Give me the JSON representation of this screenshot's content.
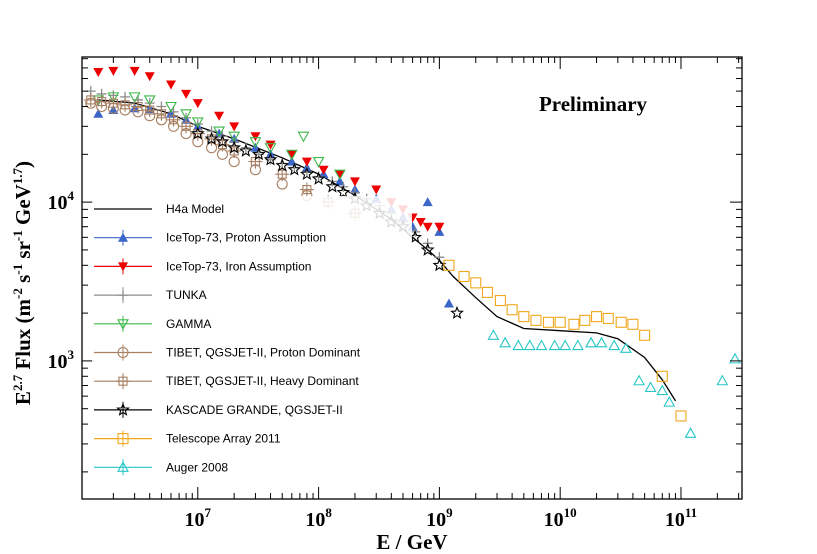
{
  "chart_data": {
    "type": "scatter",
    "title": "",
    "annotation": "Preliminary",
    "xlabel": "E / GeV",
    "ylabel": {
      "base": "E",
      "exp": "2.7",
      "rest": " Flux (m",
      "e1": "-2",
      "t1": " s",
      "e2": "-1",
      "t2": " sr",
      "e3": "-1",
      "t3": " GeV",
      "e4": "1.7",
      "t4": ")"
    },
    "x_scale": "log",
    "y_scale": "log",
    "xlim": [
      1100000.0,
      320000000000.0
    ],
    "ylim": [
      135,
      82000
    ],
    "x_ticks": [
      {
        "base": "10",
        "exp": "7"
      },
      {
        "base": "10",
        "exp": "8"
      },
      {
        "base": "10",
        "exp": "9"
      },
      {
        "base": "10",
        "exp": "10"
      },
      {
        "base": "10",
        "exp": "11"
      }
    ],
    "y_ticks": [
      {
        "base": "10",
        "exp": "3"
      },
      {
        "base": "10",
        "exp": "4"
      }
    ],
    "legend_position": "left",
    "series": [
      {
        "name": "H4a Model",
        "marker": "line",
        "color": "#000000",
        "x": [
          1500000.0,
          3000000.0,
          6000000.0,
          10000000.0,
          20000000.0,
          50000000.0,
          100000000.0,
          200000000.0,
          400000000.0,
          600000000.0,
          800000000.0,
          1000000000.0,
          1300000000.0,
          2000000000.0,
          3000000000.0,
          5000000000.0,
          10000000000.0,
          20000000000.0,
          30000000000.0,
          50000000000.0,
          70000000000.0,
          90000000000.0
        ],
        "y": [
          44000,
          42000,
          36000,
          30000,
          25000,
          19000,
          15000,
          11000,
          7800,
          6000,
          5000,
          4300,
          3400,
          2500,
          1900,
          1600,
          1550,
          1500,
          1380,
          1050,
          760,
          560
        ]
      },
      {
        "name": "IceTop-73, Proton Assumption",
        "marker": "triangle-up-filled",
        "color": "#3b66c9",
        "x": [
          1500000.0,
          2000000.0,
          3000000.0,
          4000000.0,
          6000000.0,
          8000000.0,
          10000000.0,
          15000000.0,
          20000000.0,
          30000000.0,
          40000000.0,
          60000000.0,
          80000000.0,
          110000000.0,
          150000000.0,
          200000000.0,
          300000000.0,
          400000000.0,
          500000000.0,
          600000000.0,
          800000000.0,
          1000000000.0,
          1200000000.0
        ],
        "y": [
          36000,
          38000,
          39000,
          38500,
          36000,
          33000,
          30000,
          27000,
          25000,
          22000,
          20000,
          18000,
          16500,
          15000,
          13500,
          12000,
          10500,
          9000,
          8000,
          7000,
          10000,
          6500,
          2300
        ]
      },
      {
        "name": "IceTop-73, Iron Assumption",
        "marker": "triangle-down-filled",
        "color": "#ee0000",
        "x": [
          1500000.0,
          2000000.0,
          3000000.0,
          4000000.0,
          6000000.0,
          8000000.0,
          10000000.0,
          15000000.0,
          20000000.0,
          30000000.0,
          40000000.0,
          60000000.0,
          80000000.0,
          110000000.0,
          150000000.0,
          200000000.0,
          300000000.0,
          400000000.0,
          500000000.0,
          600000000.0,
          700000000.0,
          800000000.0,
          1000000000.0
        ],
        "y": [
          66000,
          67000,
          67000,
          62000,
          55000,
          48000,
          42000,
          35000,
          30000,
          26000,
          23000,
          20000,
          18000,
          16000,
          15000,
          13500,
          12000,
          10000,
          9000,
          8000,
          7500,
          7000,
          7000
        ]
      },
      {
        "name": "TUNKA",
        "marker": "plus",
        "color": "#8c8c8c",
        "x": [
          1300000.0,
          1600000.0,
          2000000.0,
          2500000.0,
          3200000.0,
          4000000.0,
          5000000.0,
          6300000.0,
          8000000.0,
          10000000.0,
          13000000.0,
          16000000.0,
          20000000.0,
          25000000.0,
          32000000.0,
          40000000.0,
          50000000.0,
          63000000.0,
          80000000.0,
          100000000.0,
          130000000.0,
          160000000.0,
          200000000.0,
          250000000.0,
          320000000.0,
          400000000.0,
          500000000.0,
          630000000.0,
          800000000.0,
          1000000000.0
        ],
        "y": [
          50000,
          48000,
          47000,
          46000,
          44000,
          42000,
          40000,
          37000,
          34000,
          31000,
          28000,
          26000,
          24000,
          22000,
          20000,
          18500,
          17500,
          16500,
          15500,
          14500,
          13500,
          12500,
          11500,
          10500,
          9500,
          8500,
          7500,
          6500,
          5500,
          4500
        ]
      },
      {
        "name": "GAMMA",
        "marker": "triangle-down-open",
        "color": "#3cb84a",
        "x": [
          1500000.0,
          2000000.0,
          3000000.0,
          4000000.0,
          6000000.0,
          8000000.0,
          10000000.0,
          15000000.0,
          20000000.0,
          30000000.0,
          40000000.0,
          60000000.0,
          75000000.0,
          100000000.0,
          150000000.0
        ],
        "y": [
          44000,
          46000,
          46000,
          44000,
          40000,
          36000,
          32000,
          28000,
          26000,
          24000,
          22000,
          20000,
          26000,
          18000,
          15000
        ]
      },
      {
        "name": "TIBET, QGSJET-II, Proton Dominant",
        "marker": "circle-open",
        "color": "#a87f62",
        "x": [
          1300000.0,
          1600000.0,
          2000000.0,
          2500000.0,
          3200000.0,
          4000000.0,
          5000000.0,
          6300000.0,
          8000000.0,
          10000000.0,
          13000000.0,
          16000000.0,
          20000000.0,
          30000000.0,
          50000000.0,
          80000000.0
        ],
        "y": [
          42000,
          40000,
          39000,
          38000,
          37000,
          35000,
          33000,
          30000,
          27000,
          24000,
          22000,
          20000,
          18000,
          16000,
          13000,
          11000
        ]
      },
      {
        "name": "TIBET, QGSJET-II, Heavy Dominant",
        "marker": "square-plus",
        "color": "#a87f62",
        "x": [
          1300000.0,
          1600000.0,
          2000000.0,
          2500000.0,
          3200000.0,
          4000000.0,
          5000000.0,
          6300000.0,
          8000000.0,
          10000000.0,
          13000000.0,
          16000000.0,
          20000000.0,
          30000000.0,
          50000000.0,
          80000000.0,
          120000000.0,
          200000000.0
        ],
        "y": [
          44000,
          43000,
          42000,
          41000,
          40000,
          38000,
          36000,
          33000,
          30000,
          27000,
          25000,
          23000,
          21000,
          18000,
          15000,
          12000,
          10000,
          8500
        ]
      },
      {
        "name": "KASCADE GRANDE, QGSJET-II",
        "marker": "star-open",
        "color": "#000000",
        "x": [
          10000000.0,
          13000000.0,
          16000000.0,
          20000000.0,
          25000000.0,
          32000000.0,
          40000000.0,
          50000000.0,
          63000000.0,
          80000000.0,
          100000000.0,
          130000000.0,
          160000000.0,
          200000000.0,
          250000000.0,
          320000000.0,
          400000000.0,
          500000000.0,
          630000000.0,
          800000000.0,
          1000000000.0,
          1400000000.0
        ],
        "y": [
          27000,
          25000,
          24000,
          22000,
          21000,
          20000,
          18500,
          17000,
          16000,
          15000,
          14000,
          12500,
          11500,
          10500,
          9500,
          8500,
          7500,
          7000,
          6000,
          5000,
          4000,
          2000
        ]
      },
      {
        "name": "Telescope Array 2011",
        "marker": "square-open",
        "color": "#f0a81d",
        "x": [
          1200000000.0,
          1600000000.0,
          2000000000.0,
          2500000000.0,
          3200000000.0,
          4000000000.0,
          5000000000.0,
          6300000000.0,
          8000000000.0,
          10000000000.0,
          13000000000.0,
          16000000000.0,
          20000000000.0,
          25000000000.0,
          32000000000.0,
          40000000000.0,
          50000000000.0,
          70000000000.0,
          100000000000.0
        ],
        "y": [
          4000,
          3400,
          3100,
          2700,
          2400,
          2100,
          1900,
          1800,
          1750,
          1750,
          1700,
          1800,
          1900,
          1850,
          1750,
          1700,
          1450,
          800,
          450
        ]
      },
      {
        "name": "Auger 2008",
        "marker": "triangle-up-open",
        "color": "#26c6c6",
        "x": [
          2800000000.0,
          3500000000.0,
          4500000000.0,
          5600000000.0,
          7000000000.0,
          9000000000.0,
          11000000000.0,
          14000000000.0,
          18000000000.0,
          22000000000.0,
          28000000000.0,
          35000000000.0,
          45000000000.0,
          56000000000.0,
          70000000000.0,
          80000000000.0,
          120000000000.0,
          220000000000.0,
          280000000000.0
        ],
        "y": [
          1450,
          1300,
          1250,
          1250,
          1250,
          1250,
          1250,
          1250,
          1300,
          1300,
          1250,
          1200,
          750,
          680,
          650,
          550,
          350,
          750,
          1030
        ]
      }
    ]
  }
}
